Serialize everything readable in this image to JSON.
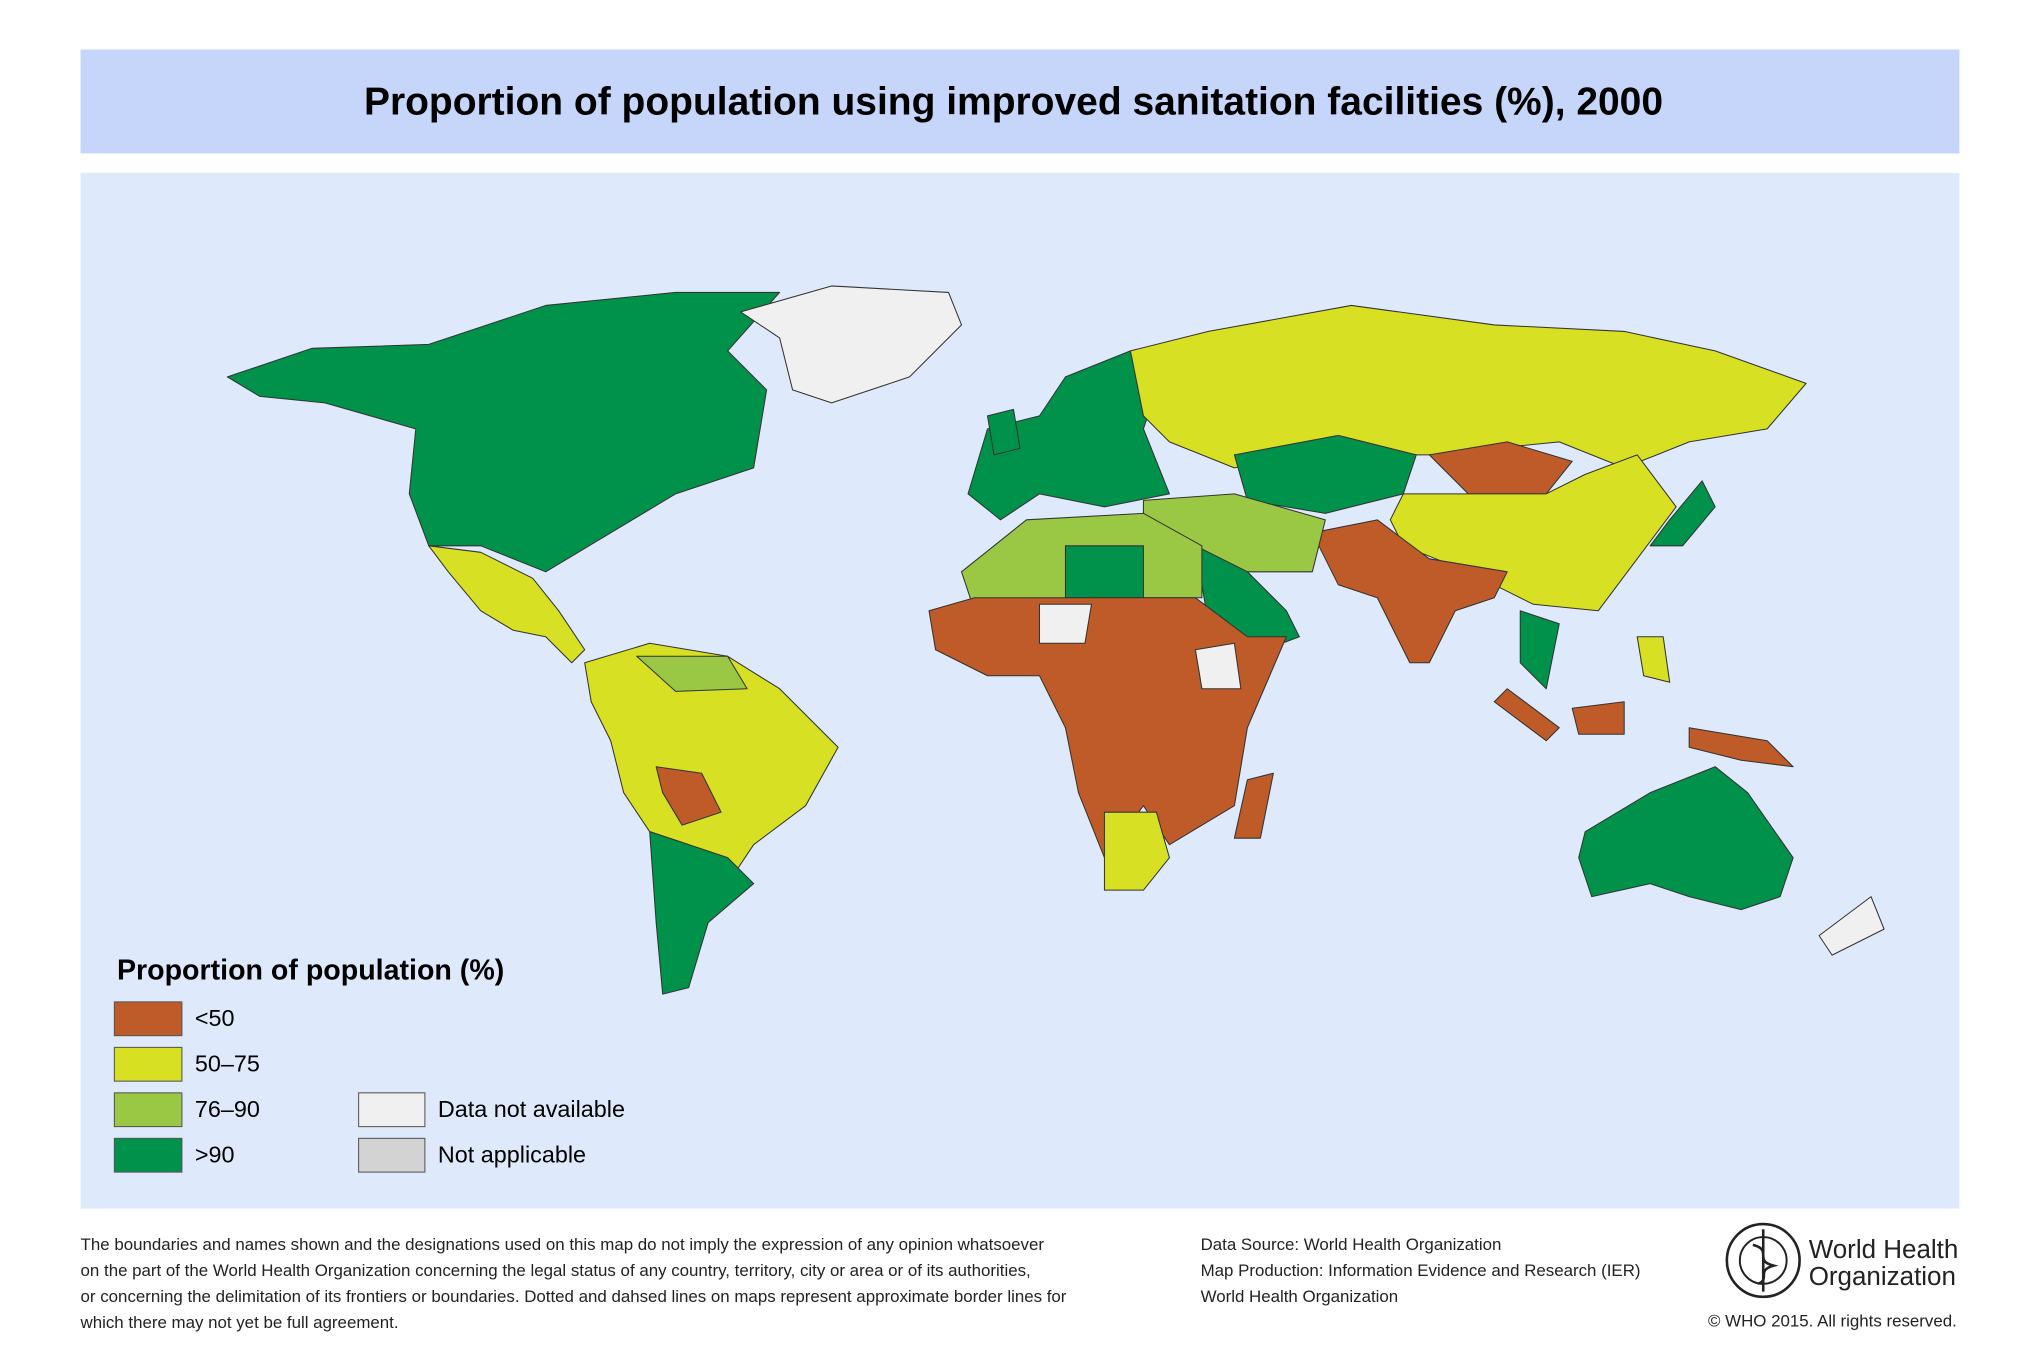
{
  "header": {
    "title": "Proportion of population using improved sanitation facilities (%), 2000"
  },
  "legend": {
    "title": "Proportion of population (%)",
    "items": [
      {
        "label": "<50",
        "color": "#bf5b28"
      },
      {
        "label": "50–75",
        "color": "#d8e024"
      },
      {
        "label": "76–90",
        "color": "#9ac844"
      },
      {
        "label": ">90",
        "color": "#00924a"
      }
    ],
    "other": [
      {
        "label": "Data not available",
        "color": "#f0f0f0"
      },
      {
        "label": "Not applicable",
        "color": "#d3d3d3"
      }
    ]
  },
  "footer": {
    "disclaimer": [
      "The boundaries and names shown and the designations used on this map do not imply the expression of any opinion whatsoever",
      "on the part of the World Health Organization concerning the legal status of any country, territory, city or area or of its authorities,",
      "or concerning the delimitation of its frontiers or boundaries. Dotted and dahsed lines on maps represent approximate border lines for",
      "which there may not yet be full agreement."
    ],
    "source": [
      "Data Source: World Health Organization",
      "Map Production: Information Evidence and Research (IER)",
      "World Health Organization"
    ],
    "organization": [
      "World Health",
      "Organization"
    ],
    "copyright": "© WHO 2015. All rights reserved."
  }
}
